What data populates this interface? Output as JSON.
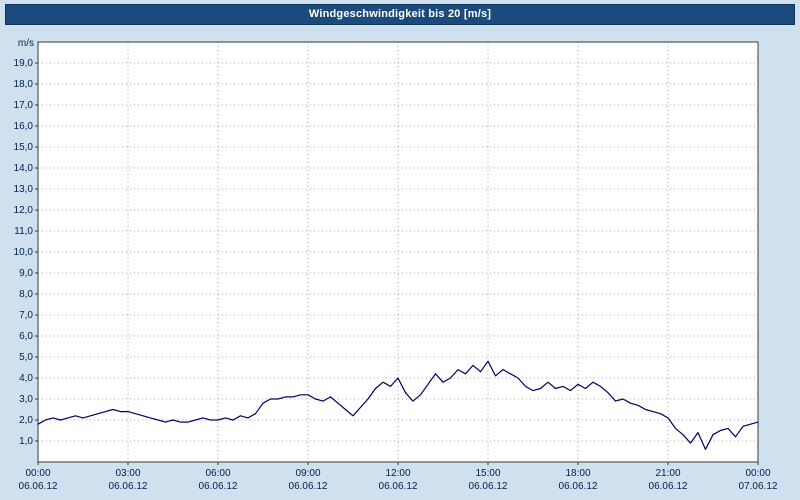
{
  "header": {
    "title": "Windgeschwindigkeit bis 20 [m/s]"
  },
  "colors": {
    "page_background": "#cfe0ef",
    "titlebar_background": "#1b4a7c",
    "titlebar_text": "#ffffff",
    "plot_background": "#ffffff",
    "plot_border": "#3a3a3a",
    "gridline": "#a8a8a8",
    "tick_text": "#002050",
    "line": "#000066"
  },
  "chart_data": {
    "type": "line",
    "title": "Windgeschwindigkeit bis 20 [m/s]",
    "ylabel": "m/s",
    "xlabel": "",
    "ylim": [
      0,
      20
    ],
    "x_start_hour": 0,
    "x_end_hour": 24,
    "sample_interval_hours": 0.25,
    "grid": true,
    "legend": "none",
    "line_color": "#000066",
    "ytick_labels": [
      "1,0",
      "2,0",
      "3,0",
      "4,0",
      "5,0",
      "6,0",
      "7,0",
      "8,0",
      "9,0",
      "10,0",
      "11,0",
      "12,0",
      "13,0",
      "14,0",
      "15,0",
      "16,0",
      "17,0",
      "18,0",
      "19,0"
    ],
    "xticks": [
      {
        "hour": 0,
        "time": "00:00",
        "date": "06.06.12"
      },
      {
        "hour": 3,
        "time": "03:00",
        "date": "06.06.12"
      },
      {
        "hour": 6,
        "time": "06:00",
        "date": "06.06.12"
      },
      {
        "hour": 9,
        "time": "09:00",
        "date": "06.06.12"
      },
      {
        "hour": 12,
        "time": "12:00",
        "date": "06.06.12"
      },
      {
        "hour": 15,
        "time": "15:00",
        "date": "06.06.12"
      },
      {
        "hour": 18,
        "time": "18:00",
        "date": "06.06.12"
      },
      {
        "hour": 21,
        "time": "21:00",
        "date": "06.06.12"
      },
      {
        "hour": 24,
        "time": "00:00",
        "date": "07.06.12"
      }
    ],
    "values": [
      1.8,
      2.0,
      2.1,
      2.0,
      2.1,
      2.2,
      2.1,
      2.2,
      2.3,
      2.4,
      2.5,
      2.4,
      2.4,
      2.3,
      2.2,
      2.1,
      2.0,
      1.9,
      2.0,
      1.9,
      1.9,
      2.0,
      2.1,
      2.0,
      2.0,
      2.1,
      2.0,
      2.2,
      2.1,
      2.3,
      2.8,
      3.0,
      3.0,
      3.1,
      3.1,
      3.2,
      3.2,
      3.0,
      2.9,
      3.1,
      2.8,
      2.5,
      2.2,
      2.6,
      3.0,
      3.5,
      3.8,
      3.6,
      4.0,
      3.3,
      2.9,
      3.2,
      3.7,
      4.2,
      3.8,
      4.0,
      4.4,
      4.2,
      4.6,
      4.3,
      4.8,
      4.1,
      4.4,
      4.2,
      4.0,
      3.6,
      3.4,
      3.5,
      3.8,
      3.5,
      3.6,
      3.4,
      3.7,
      3.5,
      3.8,
      3.6,
      3.3,
      2.9,
      3.0,
      2.8,
      2.7,
      2.5,
      2.4,
      2.3,
      2.1,
      1.6,
      1.3,
      0.9,
      1.4,
      0.6,
      1.3,
      1.5,
      1.6,
      1.2,
      1.7,
      1.8,
      1.9
    ]
  }
}
